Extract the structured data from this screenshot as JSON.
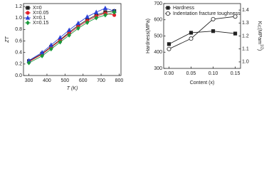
{
  "chart_data": [
    {
      "type": "line",
      "ylabel": "ZT",
      "xlabel": "T (K)",
      "x": [
        300,
        373,
        423,
        473,
        523,
        573,
        623,
        673,
        723,
        773
      ],
      "xlim": [
        270,
        810
      ],
      "xticks": [
        300,
        400,
        500,
        600,
        700,
        800
      ],
      "ylim": [
        0,
        1.25
      ],
      "yticks": [
        {
          "value": 0,
          "label": "0.0"
        },
        0.2,
        0.4,
        0.6,
        0.8,
        {
          "value": 1,
          "label": "1.0"
        },
        1.2
      ],
      "legend": "upper left",
      "series": [
        {
          "name": "X=0",
          "color": "#222222",
          "marker": "square",
          "values": [
            0.25,
            0.38,
            0.5,
            0.62,
            0.75,
            0.87,
            0.97,
            1.05,
            1.1,
            1.12
          ]
        },
        {
          "name": "X=0.05",
          "color": "#e0202a",
          "marker": "circle",
          "values": [
            0.24,
            0.37,
            0.49,
            0.61,
            0.73,
            0.85,
            0.95,
            1.03,
            1.08,
            1.05
          ]
        },
        {
          "name": "X=0.1",
          "color": "#2a3fd6",
          "marker": "triangle",
          "values": [
            0.26,
            0.4,
            0.53,
            0.66,
            0.79,
            0.91,
            1.02,
            1.1,
            1.17,
            1.12
          ]
        },
        {
          "name": "X=0.15",
          "color": "#1a9a3a",
          "marker": "diamond",
          "values": [
            0.22,
            0.34,
            0.46,
            0.58,
            0.7,
            0.82,
            0.92,
            1.0,
            1.05,
            1.1
          ]
        }
      ]
    },
    {
      "type": "line",
      "ylabel": "Hardness(MPa)",
      "xlabel": "Content (x)",
      "y2label": {
        "main": "K",
        "sub": "IC",
        "unit": "(MPam",
        "sup": "1/2",
        "close": ")"
      },
      "x": [
        0,
        0.05,
        0.1,
        0.15
      ],
      "xlim": [
        -0.012,
        0.162
      ],
      "xticks": [
        {
          "value": 0,
          "label": "0.00"
        },
        0.05,
        {
          "value": 0.1,
          "label": "0.10"
        },
        0.15
      ],
      "ylim": [
        300,
        700
      ],
      "yticks": [
        300,
        400,
        500,
        600,
        700
      ],
      "y2lim": [
        0.95,
        1.45
      ],
      "y2ticks": [
        {
          "value": 1,
          "label": "1.0"
        },
        1.1,
        1.2,
        1.3,
        1.4
      ],
      "legend": "upper left",
      "series": [
        {
          "name": "Hardness",
          "color": "#222222",
          "marker": "square",
          "values": [
            450,
            520,
            530,
            515
          ]
        },
        {
          "name": "Indentation fracture toughness",
          "color": "#222222",
          "marker": "open-circle",
          "axis": "y2",
          "values": [
            1.1,
            1.18,
            1.33,
            1.35
          ]
        }
      ]
    }
  ]
}
